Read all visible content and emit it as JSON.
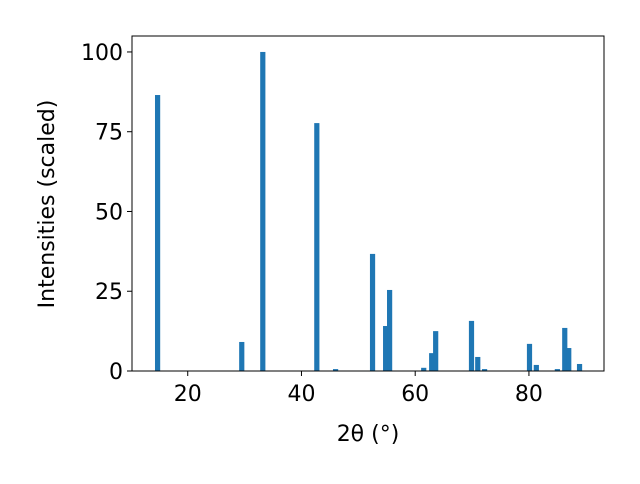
{
  "chart_data": {
    "type": "bar",
    "x_label": "2θ (°)",
    "y_label": "Intensities (scaled)",
    "x": [
      14.7,
      29.5,
      33.2,
      42.7,
      46.0,
      52.5,
      54.8,
      55.5,
      61.5,
      62.9,
      63.6,
      69.9,
      71.0,
      72.2,
      80.1,
      81.3,
      85.0,
      86.3,
      87.0,
      88.9
    ],
    "values": [
      86.5,
      9.1,
      100,
      77.7,
      0.6,
      36.7,
      14.1,
      25.4,
      1.0,
      5.6,
      12.5,
      15.7,
      4.4,
      0.6,
      8.5,
      1.9,
      0.6,
      13.5,
      7.2,
      2.2
    ],
    "color": "#1f77b4",
    "xlim": [
      10.2,
      93.2
    ],
    "xticks": [
      20,
      40,
      60,
      80
    ],
    "ylim": [
      0,
      105
    ],
    "yticks": [
      0,
      25,
      50,
      75,
      100
    ]
  }
}
